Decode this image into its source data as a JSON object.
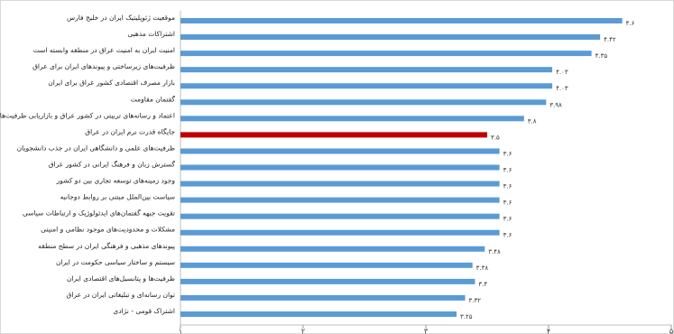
{
  "chart_data": {
    "type": "hbar",
    "categories": [
      "موقعیت ژئوپلیتیک ایران در خلیج فارس",
      "اشتراکات مذهبی",
      "امنیت ایران به امنیت عراق در منطقه وابسته است",
      "ظرفیت‌های زیرساختی و پیوندهای ایران برای عراق",
      "بازار مصرف اقتصادی کشور عراق برای ایران",
      "گفتمان مقاومت",
      "اعتماد و رسانه‌های تربیتی در کشور عراق و بازاریابی ظرفیت‌ها",
      "جایگاه قدرت نرم ایران در عراق",
      "ظرفیت‌های علمی و دانشگاهی ایران در جذب دانشجویان",
      "گسترش زبان و فرهنگ ایرانی در کشور عراق",
      "وجود زمینه‌های توسعه تجاری بین دو کشور",
      "سیاست بین‌الملل مبتنی بر روابط دوجانبه",
      "تقویت جبهه گفتمان‌های ایدئولوژیک و ارتباطات سیاسی",
      "مشکلات و محدودیت‌های موجود نظامی و امنیتی",
      "پیوندهای مذهبی و فرهنگی ایران در سطح منطقه",
      "سیستم و ساختار سیاسی حکومت در ایران",
      "ظرفیت‌ها و پتانسیل‌های اقتصادی ایران",
      "توان رسانه‌ای و تبلیغاتی ایران در عراق",
      "اشتراک قومی - نژادی"
    ],
    "values": [
      4.6,
      4.42,
      4.35,
      4.03,
      4.03,
      3.98,
      3.8,
      3.5,
      3.6,
      3.6,
      3.6,
      3.6,
      3.6,
      3.6,
      3.48,
      3.38,
      3.4,
      3.32,
      3.25
    ],
    "value_labels": [
      "۴.۶",
      "۴.۴۲",
      "۴.۳۵",
      "۴.۰۳",
      "۴.۰۳",
      "۳.۹۸",
      "۳.۸",
      "۳.۵",
      "۳.۶",
      "۳.۶",
      "۳.۶",
      "۳.۶",
      "۳.۶",
      "۳.۶",
      "۳.۴۸",
      "۳.۳۸",
      "۳.۴",
      "۳.۳۲",
      "۳.۲۵"
    ],
    "colors": [
      "#5b9bd5",
      "#5b9bd5",
      "#5b9bd5",
      "#5b9bd5",
      "#5b9bd5",
      "#5b9bd5",
      "#5b9bd5",
      "#c00000",
      "#5b9bd5",
      "#5b9bd5",
      "#5b9bd5",
      "#5b9bd5",
      "#5b9bd5",
      "#5b9bd5",
      "#5b9bd5",
      "#5b9bd5",
      "#5b9bd5",
      "#5b9bd5",
      "#5b9bd5"
    ],
    "xlim": [
      1,
      5
    ],
    "xticks": [
      {
        "value": 1,
        "label": "۱"
      },
      {
        "value": 2,
        "label": "۲"
      },
      {
        "value": 3,
        "label": "۳"
      },
      {
        "value": 4,
        "label": "۴"
      },
      {
        "value": 5,
        "label": "۵"
      }
    ],
    "grid": false
  }
}
